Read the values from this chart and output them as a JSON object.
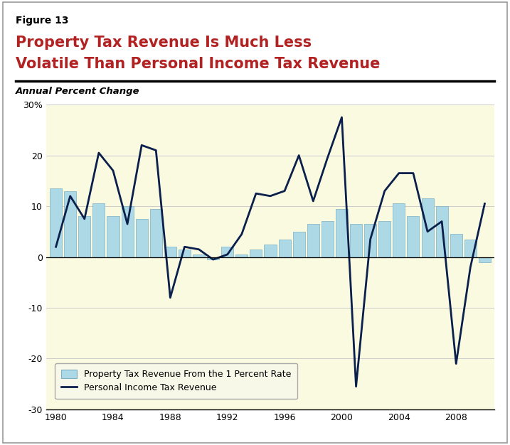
{
  "figure_label": "Figure 13",
  "title_line1": "Property Tax Revenue Is Much Less",
  "title_line2": "Volatile Than Personal Income Tax Revenue",
  "subtitle": "Annual Percent Change",
  "background_color": "#FAFAE0",
  "title_color": "#B22222",
  "figure_label_color": "#000000",
  "bar_color": "#ADD8E6",
  "bar_edge_color": "#7BAFC4",
  "line_color": "#0A1F4B",
  "years": [
    1980,
    1981,
    1982,
    1983,
    1984,
    1985,
    1986,
    1987,
    1988,
    1989,
    1990,
    1991,
    1992,
    1993,
    1994,
    1995,
    1996,
    1997,
    1998,
    1999,
    2000,
    2001,
    2002,
    2003,
    2004,
    2005,
    2006,
    2007,
    2008,
    2009,
    2010
  ],
  "bar_values": [
    13.5,
    13.0,
    8.0,
    10.5,
    8.0,
    10.0,
    7.5,
    9.5,
    2.0,
    1.5,
    0.5,
    -0.5,
    2.0,
    0.5,
    1.5,
    2.5,
    3.5,
    5.0,
    6.5,
    7.0,
    9.5,
    6.5,
    6.5,
    7.0,
    10.5,
    8.0,
    11.5,
    10.0,
    4.5,
    3.5,
    -1.0
  ],
  "line_values": [
    2.0,
    12.0,
    7.5,
    20.5,
    17.0,
    6.5,
    22.0,
    21.0,
    -8.0,
    2.0,
    1.5,
    -0.5,
    0.5,
    4.5,
    12.5,
    12.0,
    13.0,
    20.0,
    11.0,
    19.5,
    27.5,
    -25.5,
    3.5,
    13.0,
    16.5,
    16.5,
    5.0,
    7.0,
    -21.0,
    -2.0,
    10.5
  ],
  "ylim": [
    -30,
    30
  ],
  "yticks": [
    -30,
    -20,
    -10,
    0,
    10,
    20,
    30
  ],
  "xtick_labels": [
    "1980",
    "1984",
    "1988",
    "1992",
    "1996",
    "2000",
    "2004",
    "2008"
  ],
  "xtick_positions": [
    1980,
    1984,
    1988,
    1992,
    1996,
    2000,
    2004,
    2008
  ],
  "legend_bar_label": "Property Tax Revenue From the 1 Percent Rate",
  "legend_line_label": "Personal Income Tax Revenue",
  "grid_color": "#CCCCCC",
  "outer_border_color": "#999999"
}
